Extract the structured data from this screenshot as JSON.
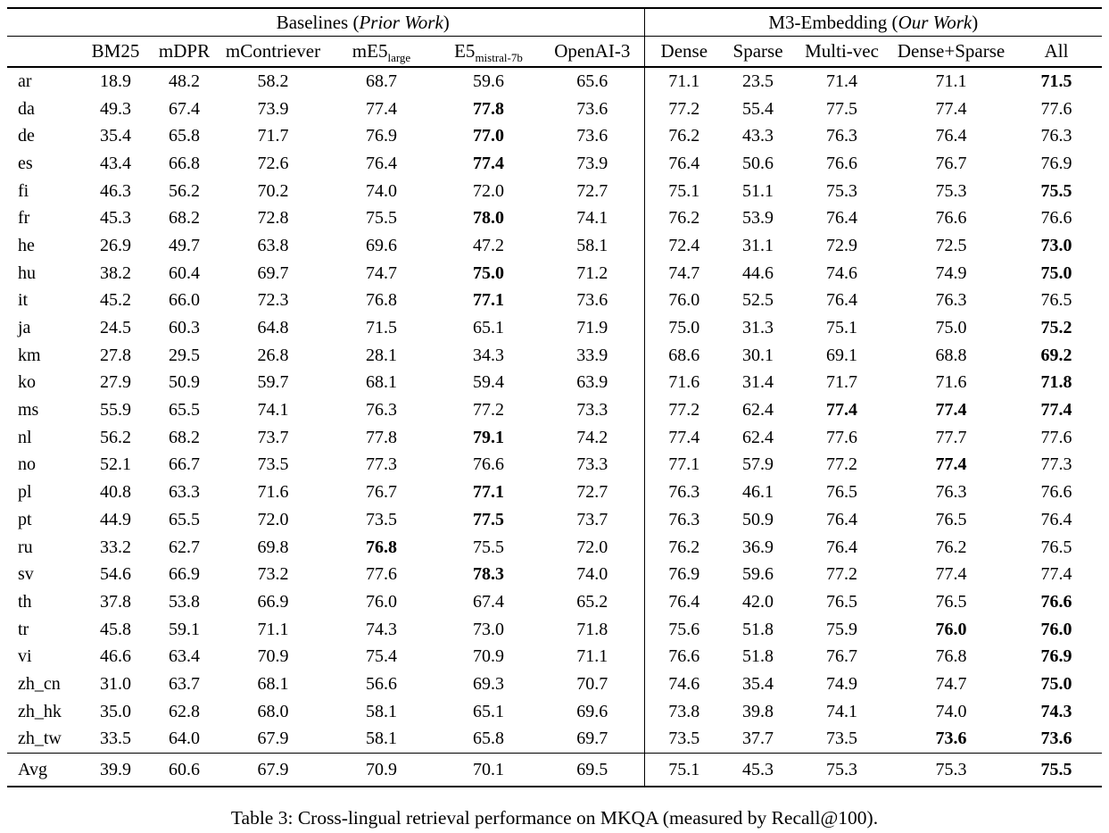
{
  "table": {
    "group_headers": {
      "baselines": {
        "prefix": "Baselines (",
        "italic": "Prior Work",
        "suffix": ")"
      },
      "m3": {
        "prefix": "M3-Embedding (",
        "italic": "Our Work",
        "suffix": ")"
      }
    },
    "columns": [
      {
        "label": "BM25"
      },
      {
        "label": "mDPR"
      },
      {
        "label": "mContriever"
      },
      {
        "label": "mE5",
        "sub": "large"
      },
      {
        "label": "E5",
        "sub": "mistral-7b"
      },
      {
        "label": "OpenAI-3"
      },
      {
        "label": "Dense"
      },
      {
        "label": "Sparse"
      },
      {
        "label": "Multi-vec"
      },
      {
        "label": "Dense+Sparse"
      },
      {
        "label": "All"
      }
    ],
    "rows": [
      {
        "lang": "ar",
        "values": [
          "18.9",
          "48.2",
          "58.2",
          "68.7",
          "59.6",
          "65.6",
          "71.1",
          "23.5",
          "71.4",
          "71.1",
          "71.5"
        ],
        "bold": [
          10
        ]
      },
      {
        "lang": "da",
        "values": [
          "49.3",
          "67.4",
          "73.9",
          "77.4",
          "77.8",
          "73.6",
          "77.2",
          "55.4",
          "77.5",
          "77.4",
          "77.6"
        ],
        "bold": [
          4
        ]
      },
      {
        "lang": "de",
        "values": [
          "35.4",
          "65.8",
          "71.7",
          "76.9",
          "77.0",
          "73.6",
          "76.2",
          "43.3",
          "76.3",
          "76.4",
          "76.3"
        ],
        "bold": [
          4
        ]
      },
      {
        "lang": "es",
        "values": [
          "43.4",
          "66.8",
          "72.6",
          "76.4",
          "77.4",
          "73.9",
          "76.4",
          "50.6",
          "76.6",
          "76.7",
          "76.9"
        ],
        "bold": [
          4
        ]
      },
      {
        "lang": "fi",
        "values": [
          "46.3",
          "56.2",
          "70.2",
          "74.0",
          "72.0",
          "72.7",
          "75.1",
          "51.1",
          "75.3",
          "75.3",
          "75.5"
        ],
        "bold": [
          10
        ]
      },
      {
        "lang": "fr",
        "values": [
          "45.3",
          "68.2",
          "72.8",
          "75.5",
          "78.0",
          "74.1",
          "76.2",
          "53.9",
          "76.4",
          "76.6",
          "76.6"
        ],
        "bold": [
          4
        ]
      },
      {
        "lang": "he",
        "values": [
          "26.9",
          "49.7",
          "63.8",
          "69.6",
          "47.2",
          "58.1",
          "72.4",
          "31.1",
          "72.9",
          "72.5",
          "73.0"
        ],
        "bold": [
          10
        ]
      },
      {
        "lang": "hu",
        "values": [
          "38.2",
          "60.4",
          "69.7",
          "74.7",
          "75.0",
          "71.2",
          "74.7",
          "44.6",
          "74.6",
          "74.9",
          "75.0"
        ],
        "bold": [
          4,
          10
        ]
      },
      {
        "lang": "it",
        "values": [
          "45.2",
          "66.0",
          "72.3",
          "76.8",
          "77.1",
          "73.6",
          "76.0",
          "52.5",
          "76.4",
          "76.3",
          "76.5"
        ],
        "bold": [
          4
        ]
      },
      {
        "lang": "ja",
        "values": [
          "24.5",
          "60.3",
          "64.8",
          "71.5",
          "65.1",
          "71.9",
          "75.0",
          "31.3",
          "75.1",
          "75.0",
          "75.2"
        ],
        "bold": [
          10
        ]
      },
      {
        "lang": "km",
        "values": [
          "27.8",
          "29.5",
          "26.8",
          "28.1",
          "34.3",
          "33.9",
          "68.6",
          "30.1",
          "69.1",
          "68.8",
          "69.2"
        ],
        "bold": [
          10
        ]
      },
      {
        "lang": "ko",
        "values": [
          "27.9",
          "50.9",
          "59.7",
          "68.1",
          "59.4",
          "63.9",
          "71.6",
          "31.4",
          "71.7",
          "71.6",
          "71.8"
        ],
        "bold": [
          10
        ]
      },
      {
        "lang": "ms",
        "values": [
          "55.9",
          "65.5",
          "74.1",
          "76.3",
          "77.2",
          "73.3",
          "77.2",
          "62.4",
          "77.4",
          "77.4",
          "77.4"
        ],
        "bold": [
          8,
          9,
          10
        ]
      },
      {
        "lang": "nl",
        "values": [
          "56.2",
          "68.2",
          "73.7",
          "77.8",
          "79.1",
          "74.2",
          "77.4",
          "62.4",
          "77.6",
          "77.7",
          "77.6"
        ],
        "bold": [
          4
        ]
      },
      {
        "lang": "no",
        "values": [
          "52.1",
          "66.7",
          "73.5",
          "77.3",
          "76.6",
          "73.3",
          "77.1",
          "57.9",
          "77.2",
          "77.4",
          "77.3"
        ],
        "bold": [
          9
        ]
      },
      {
        "lang": "pl",
        "values": [
          "40.8",
          "63.3",
          "71.6",
          "76.7",
          "77.1",
          "72.7",
          "76.3",
          "46.1",
          "76.5",
          "76.3",
          "76.6"
        ],
        "bold": [
          4
        ]
      },
      {
        "lang": "pt",
        "values": [
          "44.9",
          "65.5",
          "72.0",
          "73.5",
          "77.5",
          "73.7",
          "76.3",
          "50.9",
          "76.4",
          "76.5",
          "76.4"
        ],
        "bold": [
          4
        ]
      },
      {
        "lang": "ru",
        "values": [
          "33.2",
          "62.7",
          "69.8",
          "76.8",
          "75.5",
          "72.0",
          "76.2",
          "36.9",
          "76.4",
          "76.2",
          "76.5"
        ],
        "bold": [
          3
        ]
      },
      {
        "lang": "sv",
        "values": [
          "54.6",
          "66.9",
          "73.2",
          "77.6",
          "78.3",
          "74.0",
          "76.9",
          "59.6",
          "77.2",
          "77.4",
          "77.4"
        ],
        "bold": [
          4
        ]
      },
      {
        "lang": "th",
        "values": [
          "37.8",
          "53.8",
          "66.9",
          "76.0",
          "67.4",
          "65.2",
          "76.4",
          "42.0",
          "76.5",
          "76.5",
          "76.6"
        ],
        "bold": [
          10
        ]
      },
      {
        "lang": "tr",
        "values": [
          "45.8",
          "59.1",
          "71.1",
          "74.3",
          "73.0",
          "71.8",
          "75.6",
          "51.8",
          "75.9",
          "76.0",
          "76.0"
        ],
        "bold": [
          9,
          10
        ]
      },
      {
        "lang": "vi",
        "values": [
          "46.6",
          "63.4",
          "70.9",
          "75.4",
          "70.9",
          "71.1",
          "76.6",
          "51.8",
          "76.7",
          "76.8",
          "76.9"
        ],
        "bold": [
          10
        ]
      },
      {
        "lang": "zh_cn",
        "values": [
          "31.0",
          "63.7",
          "68.1",
          "56.6",
          "69.3",
          "70.7",
          "74.6",
          "35.4",
          "74.9",
          "74.7",
          "75.0"
        ],
        "bold": [
          10
        ]
      },
      {
        "lang": "zh_hk",
        "values": [
          "35.0",
          "62.8",
          "68.0",
          "58.1",
          "65.1",
          "69.6",
          "73.8",
          "39.8",
          "74.1",
          "74.0",
          "74.3"
        ],
        "bold": [
          10
        ]
      },
      {
        "lang": "zh_tw",
        "values": [
          "33.5",
          "64.0",
          "67.9",
          "58.1",
          "65.8",
          "69.7",
          "73.5",
          "37.7",
          "73.5",
          "73.6",
          "73.6"
        ],
        "bold": [
          9,
          10
        ]
      },
      {
        "lang": "Avg",
        "values": [
          "39.9",
          "60.6",
          "67.9",
          "70.9",
          "70.1",
          "69.5",
          "75.1",
          "45.3",
          "75.3",
          "75.3",
          "75.5"
        ],
        "bold": [
          10
        ],
        "is_avg": true
      }
    ]
  },
  "caption": "Table 3: Cross-lingual retrieval performance on MKQA (measured by Recall@100)."
}
